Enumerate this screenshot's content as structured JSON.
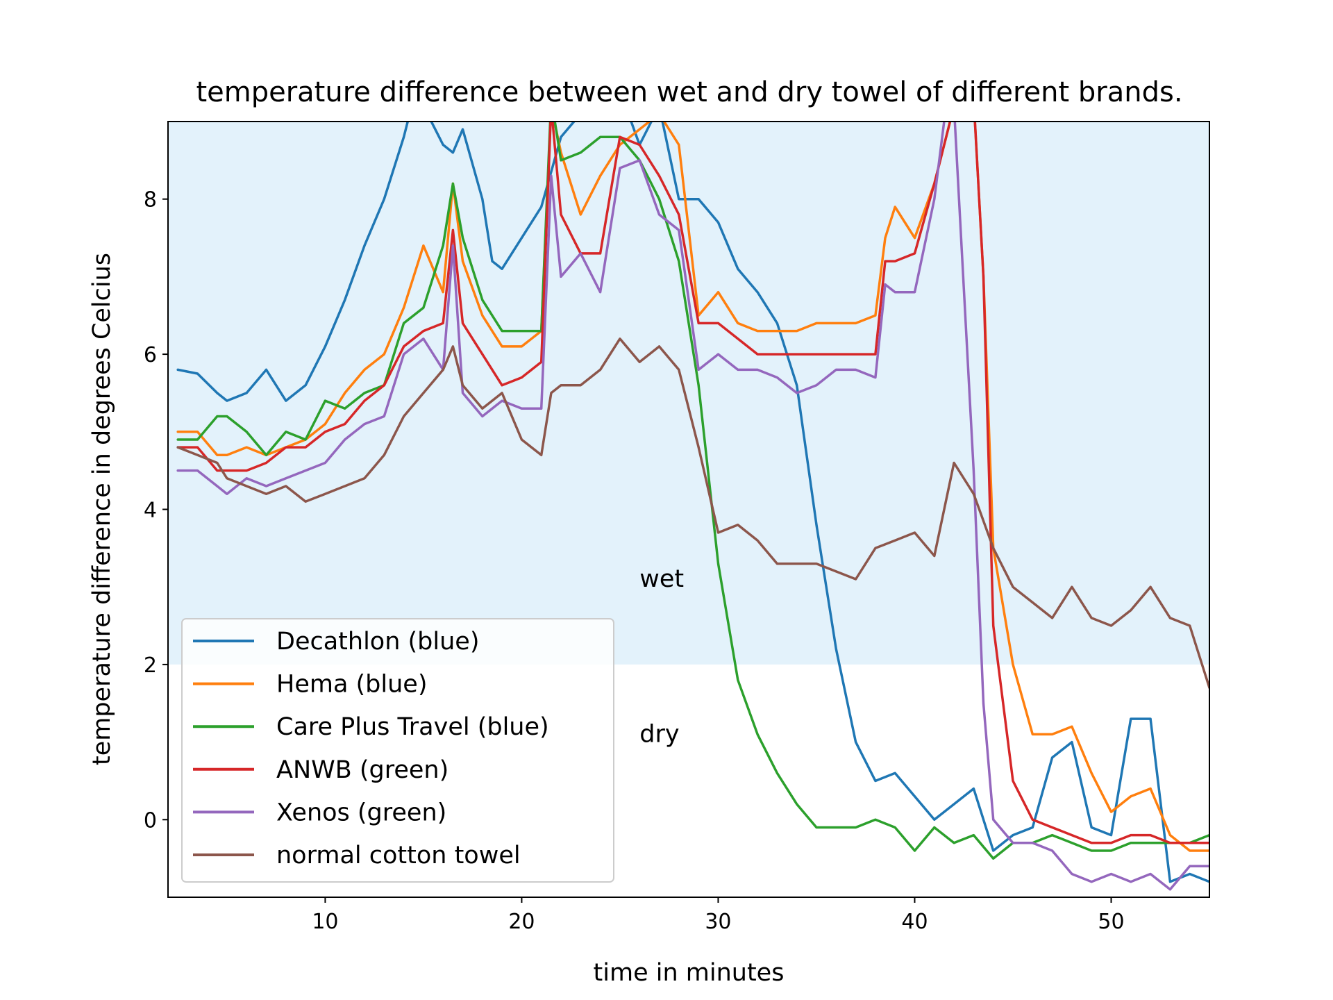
{
  "chart_data": {
    "type": "line",
    "title": "temperature difference between wet and dry towel of different brands.",
    "xlabel": "time in minutes",
    "ylabel": "temperature difference in degrees Celcius",
    "xlim": [
      2,
      55
    ],
    "ylim": [
      -1,
      9
    ],
    "xticks": [
      10,
      20,
      30,
      40,
      50
    ],
    "yticks": [
      0,
      2,
      4,
      6,
      8
    ],
    "grid": false,
    "legend_position": "lower-left",
    "shaded_region": {
      "y_from": 2,
      "y_to": 9,
      "color": "#e3f2fb"
    },
    "annotations": [
      {
        "text": "wet",
        "x": 26,
        "y": 3.0
      },
      {
        "text": "dry",
        "x": 26,
        "y": 1.0
      }
    ],
    "series": [
      {
        "name": "Decathlon (blue)",
        "color": "#1f77b4",
        "x": [
          2.5,
          3.5,
          4.5,
          5.0,
          6.0,
          7.0,
          8.0,
          9.0,
          10.0,
          11.0,
          12.0,
          13.0,
          14.0,
          14.5,
          15.0,
          16.0,
          16.5,
          17.0,
          18.0,
          18.5,
          19.0,
          20.0,
          21.0,
          22.0,
          23.0,
          24.0,
          25.0,
          26.0,
          27.0,
          28.0,
          29.0,
          30.0,
          31.0,
          32.0,
          33.0,
          34.0,
          35.0,
          36.0,
          37.0,
          38.0,
          39.0,
          40.0,
          41.0,
          42.0,
          43.0,
          44.0,
          45.0,
          46.0,
          47.0,
          48.0,
          49.0,
          50.0,
          51.0,
          52.0,
          53.0,
          54.0,
          55.0
        ],
        "y": [
          5.8,
          5.75,
          5.5,
          5.4,
          5.5,
          5.8,
          5.4,
          5.6,
          6.1,
          6.7,
          7.4,
          8.0,
          8.8,
          9.3,
          9.2,
          8.7,
          8.6,
          8.9,
          8.0,
          7.2,
          7.1,
          7.5,
          7.9,
          8.8,
          9.1,
          9.4,
          9.4,
          8.7,
          9.2,
          8.0,
          8.0,
          7.7,
          7.1,
          6.8,
          6.4,
          5.6,
          3.8,
          2.2,
          1.0,
          0.5,
          0.6,
          0.3,
          0.0,
          0.2,
          0.4,
          -0.4,
          -0.2,
          -0.1,
          0.8,
          1.0,
          -0.1,
          -0.2,
          1.3,
          1.3,
          -0.8,
          -0.7,
          -0.8
        ]
      },
      {
        "name": "Hema (blue)",
        "color": "#ff7f0e",
        "x": [
          2.5,
          3.5,
          4.5,
          5.0,
          6.0,
          7.0,
          8.0,
          9.0,
          10.0,
          11.0,
          12.0,
          13.0,
          14.0,
          15.0,
          16.0,
          16.5,
          17.0,
          18.0,
          19.0,
          20.0,
          21.0,
          21.5,
          22.0,
          23.0,
          24.0,
          25.0,
          26.0,
          27.0,
          28.0,
          29.0,
          30.0,
          31.0,
          32.0,
          33.0,
          34.0,
          35.0,
          36.0,
          37.0,
          38.0,
          38.5,
          39.0,
          40.0,
          41.0,
          42.0,
          43.0,
          43.5,
          44.0,
          45.0,
          46.0,
          47.0,
          48.0,
          49.0,
          50.0,
          51.0,
          52.0,
          53.0,
          54.0,
          55.0
        ],
        "y": [
          5.0,
          5.0,
          4.7,
          4.7,
          4.8,
          4.7,
          4.8,
          4.9,
          5.1,
          5.5,
          5.8,
          6.0,
          6.6,
          7.4,
          6.8,
          8.2,
          7.2,
          6.5,
          6.1,
          6.1,
          6.3,
          9.2,
          8.6,
          7.8,
          8.3,
          8.7,
          8.9,
          9.1,
          8.7,
          6.5,
          6.8,
          6.4,
          6.3,
          6.3,
          6.3,
          6.4,
          6.4,
          6.4,
          6.5,
          7.5,
          7.9,
          7.5,
          8.2,
          9.2,
          9.3,
          7.0,
          3.5,
          2.0,
          1.1,
          1.1,
          1.2,
          0.6,
          0.1,
          0.3,
          0.4,
          -0.2,
          -0.4,
          -0.4
        ]
      },
      {
        "name": "Care Plus Travel (blue)",
        "color": "#2ca02c",
        "x": [
          2.5,
          3.5,
          4.5,
          5.0,
          6.0,
          7.0,
          8.0,
          9.0,
          10.0,
          11.0,
          12.0,
          13.0,
          14.0,
          15.0,
          16.0,
          16.5,
          17.0,
          18.0,
          19.0,
          20.0,
          21.0,
          21.5,
          22.0,
          23.0,
          24.0,
          25.0,
          26.0,
          27.0,
          28.0,
          29.0,
          30.0,
          31.0,
          32.0,
          33.0,
          34.0,
          35.0,
          36.0,
          37.0,
          38.0,
          39.0,
          40.0,
          41.0,
          42.0,
          43.0,
          44.0,
          45.0,
          46.0,
          47.0,
          48.0,
          49.0,
          50.0,
          51.0,
          52.0,
          53.0,
          54.0,
          55.0
        ],
        "y": [
          4.9,
          4.9,
          5.2,
          5.2,
          5.0,
          4.7,
          5.0,
          4.9,
          5.4,
          5.3,
          5.5,
          5.6,
          6.4,
          6.6,
          7.4,
          8.2,
          7.5,
          6.7,
          6.3,
          6.3,
          6.3,
          9.3,
          8.5,
          8.6,
          8.8,
          8.8,
          8.5,
          8.0,
          7.2,
          5.6,
          3.3,
          1.8,
          1.1,
          0.6,
          0.2,
          -0.1,
          -0.1,
          -0.1,
          0.0,
          -0.1,
          -0.4,
          -0.1,
          -0.3,
          -0.2,
          -0.5,
          -0.3,
          -0.3,
          -0.2,
          -0.3,
          -0.4,
          -0.4,
          -0.3,
          -0.3,
          -0.3,
          -0.3,
          -0.2
        ]
      },
      {
        "name": "ANWB (green)",
        "color": "#d62728",
        "x": [
          2.5,
          3.5,
          4.5,
          5.0,
          6.0,
          7.0,
          8.0,
          9.0,
          10.0,
          11.0,
          12.0,
          13.0,
          14.0,
          15.0,
          16.0,
          16.5,
          17.0,
          18.0,
          19.0,
          20.0,
          21.0,
          21.5,
          22.0,
          23.0,
          24.0,
          25.0,
          26.0,
          27.0,
          28.0,
          29.0,
          30.0,
          31.0,
          32.0,
          33.0,
          34.0,
          35.0,
          36.0,
          37.0,
          38.0,
          38.5,
          39.0,
          40.0,
          41.0,
          42.0,
          43.0,
          43.5,
          44.0,
          45.0,
          46.0,
          47.0,
          48.0,
          49.0,
          50.0,
          51.0,
          52.0,
          53.0,
          54.0,
          55.0
        ],
        "y": [
          4.8,
          4.8,
          4.5,
          4.5,
          4.5,
          4.6,
          4.8,
          4.8,
          5.0,
          5.1,
          5.4,
          5.6,
          6.1,
          6.3,
          6.4,
          7.6,
          6.4,
          6.0,
          5.6,
          5.7,
          5.9,
          9.2,
          7.8,
          7.3,
          7.3,
          8.8,
          8.7,
          8.3,
          7.8,
          6.4,
          6.4,
          6.2,
          6.0,
          6.0,
          6.0,
          6.0,
          6.0,
          6.0,
          6.0,
          7.2,
          7.2,
          7.3,
          8.2,
          9.2,
          9.3,
          7.0,
          2.5,
          0.5,
          0.0,
          -0.1,
          -0.2,
          -0.3,
          -0.3,
          -0.2,
          -0.2,
          -0.3,
          -0.3,
          -0.3
        ]
      },
      {
        "name": "Xenos (green)",
        "color": "#9467bd",
        "x": [
          2.5,
          3.5,
          4.5,
          5.0,
          6.0,
          7.0,
          8.0,
          9.0,
          10.0,
          11.0,
          12.0,
          13.0,
          14.0,
          15.0,
          16.0,
          16.5,
          17.0,
          18.0,
          19.0,
          20.0,
          21.0,
          21.5,
          22.0,
          23.0,
          24.0,
          25.0,
          26.0,
          27.0,
          28.0,
          29.0,
          30.0,
          31.0,
          32.0,
          33.0,
          34.0,
          35.0,
          36.0,
          37.0,
          38.0,
          38.5,
          39.0,
          40.0,
          41.0,
          41.5,
          42.0,
          43.0,
          43.5,
          44.0,
          45.0,
          46.0,
          47.0,
          48.0,
          49.0,
          50.0,
          51.0,
          52.0,
          53.0,
          54.0,
          55.0
        ],
        "y": [
          4.5,
          4.5,
          4.3,
          4.2,
          4.4,
          4.3,
          4.4,
          4.5,
          4.6,
          4.9,
          5.1,
          5.2,
          6.0,
          6.2,
          5.8,
          7.4,
          5.5,
          5.2,
          5.4,
          5.3,
          5.3,
          8.3,
          7.0,
          7.3,
          6.8,
          8.4,
          8.5,
          7.8,
          7.6,
          5.8,
          6.0,
          5.8,
          5.8,
          5.7,
          5.5,
          5.6,
          5.8,
          5.8,
          5.7,
          6.9,
          6.8,
          6.8,
          8.0,
          9.0,
          9.2,
          4.5,
          1.5,
          0.0,
          -0.3,
          -0.3,
          -0.4,
          -0.7,
          -0.8,
          -0.7,
          -0.8,
          -0.7,
          -0.9,
          -0.6,
          -0.6
        ]
      },
      {
        "name": "normal cotton towel",
        "color": "#8c564b",
        "x": [
          2.5,
          3.5,
          4.5,
          5.0,
          6.0,
          7.0,
          8.0,
          9.0,
          10.0,
          11.0,
          12.0,
          13.0,
          14.0,
          15.0,
          16.0,
          16.5,
          17.0,
          18.0,
          19.0,
          20.0,
          21.0,
          21.5,
          22.0,
          23.0,
          24.0,
          25.0,
          26.0,
          27.0,
          28.0,
          29.0,
          30.0,
          31.0,
          32.0,
          33.0,
          34.0,
          35.0,
          36.0,
          37.0,
          38.0,
          39.0,
          40.0,
          41.0,
          42.0,
          43.0,
          44.0,
          45.0,
          46.0,
          47.0,
          48.0,
          49.0,
          50.0,
          51.0,
          52.0,
          53.0,
          54.0,
          55.0
        ],
        "y": [
          4.8,
          4.7,
          4.6,
          4.4,
          4.3,
          4.2,
          4.3,
          4.1,
          4.2,
          4.3,
          4.4,
          4.7,
          5.2,
          5.5,
          5.8,
          6.1,
          5.6,
          5.3,
          5.5,
          4.9,
          4.7,
          5.5,
          5.6,
          5.6,
          5.8,
          6.2,
          5.9,
          6.1,
          5.8,
          4.8,
          3.7,
          3.8,
          3.6,
          3.3,
          3.3,
          3.3,
          3.2,
          3.1,
          3.5,
          3.6,
          3.7,
          3.4,
          4.6,
          4.2,
          3.5,
          3.0,
          2.8,
          2.6,
          3.0,
          2.6,
          2.5,
          2.7,
          3.0,
          2.6,
          2.5,
          1.7
        ]
      }
    ]
  }
}
